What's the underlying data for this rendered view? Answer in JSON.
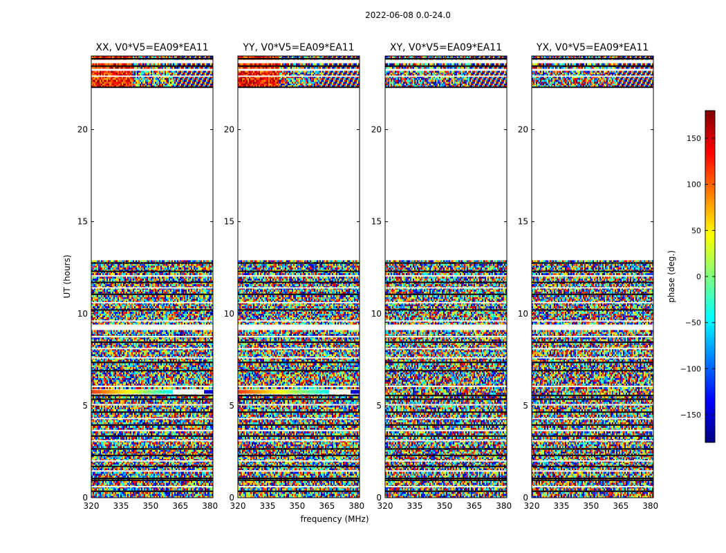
{
  "figure": {
    "suptitle": "2022-06-08 0.0-24.0",
    "xlabel": "frequency (MHz)",
    "ylabel": "UT (hours)"
  },
  "chart_data": {
    "type": "heatmap",
    "title": "2022-06-08 0.0-24.0",
    "xlabel": "frequency (MHz)",
    "ylabel": "UT (hours)",
    "xlim": [
      320,
      381.5
    ],
    "ylim": [
      0,
      24
    ],
    "xticks": [
      320,
      335,
      350,
      365,
      380
    ],
    "yticks": [
      0,
      5,
      10,
      15,
      20
    ],
    "panels": [
      {
        "title": "XX, V0*V5=EA09*EA11",
        "ramp": true
      },
      {
        "title": "YY, V0*V5=EA09*EA11",
        "ramp": true
      },
      {
        "title": "XY, V0*V5=EA09*EA11",
        "ramp": false
      },
      {
        "title": "YX, V0*V5=EA09*EA11",
        "ramp": false
      }
    ],
    "flagged_ut_ranges": [
      [
        9.1,
        9.35
      ],
      [
        12.9,
        22.3
      ],
      [
        23.2,
        23.3
      ],
      [
        23.6,
        23.75
      ]
    ],
    "colorbar": {
      "label": "phase (deg.)",
      "range": [
        -180,
        180
      ],
      "ticks": [
        -150,
        -100,
        -50,
        0,
        50,
        100,
        150
      ],
      "tick_labels": [
        "−150",
        "−100",
        "−50",
        "0",
        "50",
        "100",
        "150"
      ],
      "colormap": [
        "#00007f",
        "#0000ff",
        "#007fff",
        "#00ffff",
        "#7fff7f",
        "#ffff00",
        "#ff7f00",
        "#ff0000",
        "#7f0000"
      ]
    }
  }
}
